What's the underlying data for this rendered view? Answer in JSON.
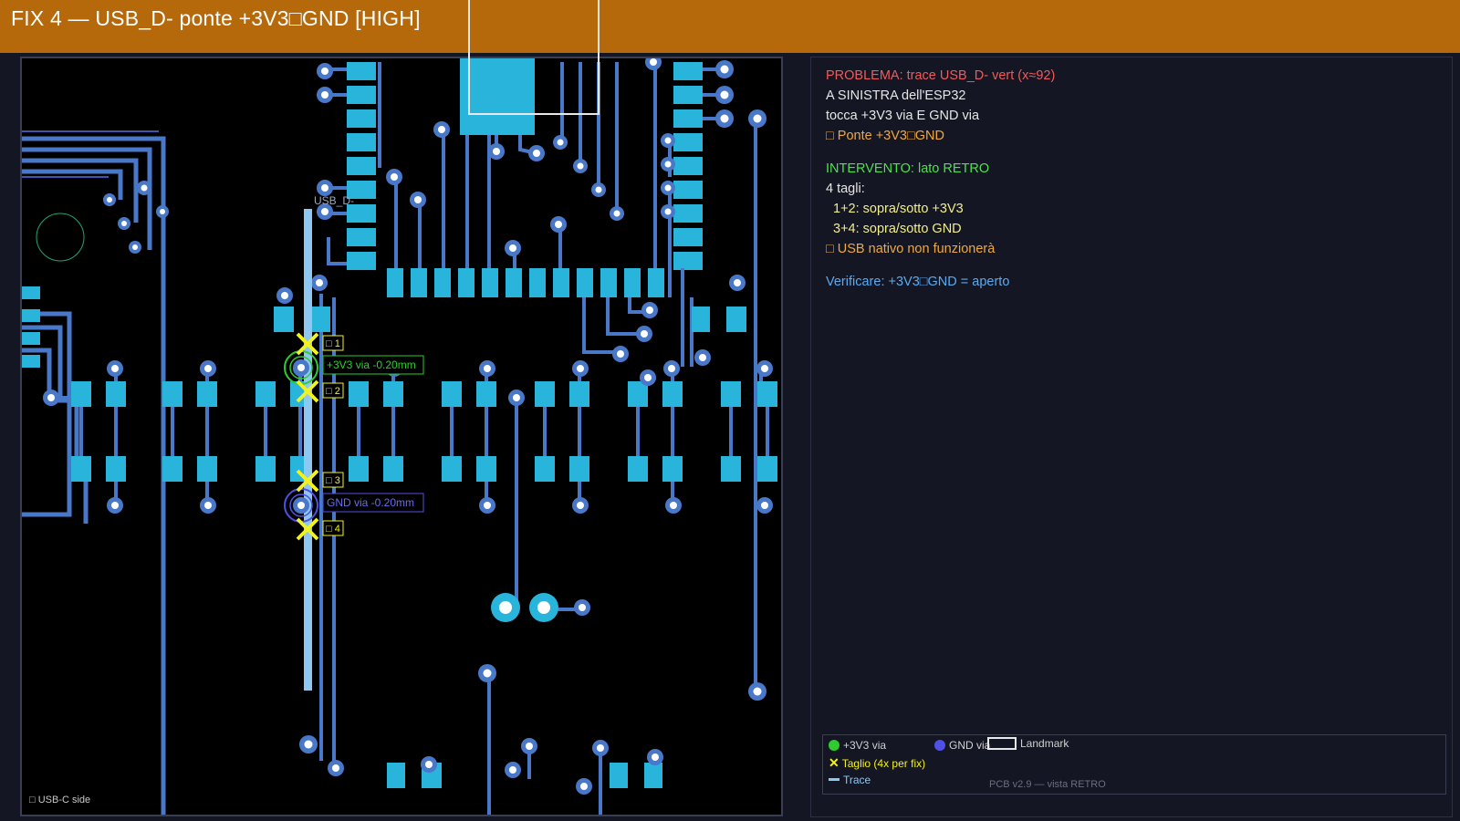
{
  "header": {
    "title": "FIX 4 — USB_D- ponte +3V3□GND [HIGH]"
  },
  "pcb": {
    "net_label": "USB_D-",
    "side_note": "□ USB-C side",
    "cut_labels": [
      "□ 1",
      "□ 2",
      "□ 3",
      "□ 4"
    ],
    "via_plus_label": "+3V3 via -0.20mm",
    "via_gnd_label": "GND via -0.20mm",
    "colors": {
      "pad": "#29b4dc",
      "trace": "#4a78c8",
      "highlight_trace": "#8ec8f0",
      "via_ring": "#4a78c8",
      "cut_marker": "#f2f21e",
      "via_plus": "#2ecc2e",
      "via_gnd": "#5050e6"
    }
  },
  "info": {
    "problem_line": "PROBLEMA: trace USB_D- vert (x≈92)",
    "problem_detail_1": "A SINISTRA dell'ESP32",
    "problem_detail_2": "tocca +3V3 via E GND via",
    "problem_warning": "□ Ponte +3V3□GND",
    "intervention_line": "INTERVENTO: lato RETRO",
    "cuts_count": "4 tagli:",
    "cuts_1_2": "1+2: sopra/sotto +3V3",
    "cuts_3_4": "3+4: sopra/sotto GND",
    "usb_warning": "□ USB nativo non funzionerà",
    "verify_line": "Verificare: +3V3□GND = aperto"
  },
  "legend": {
    "plus_via": "+3V3 via",
    "gnd_via": "GND via",
    "landmark": "Landmark",
    "cut": "Taglio (4x per fix)",
    "trace": "Trace",
    "footer": "PCB v2.9 — vista RETRO"
  }
}
